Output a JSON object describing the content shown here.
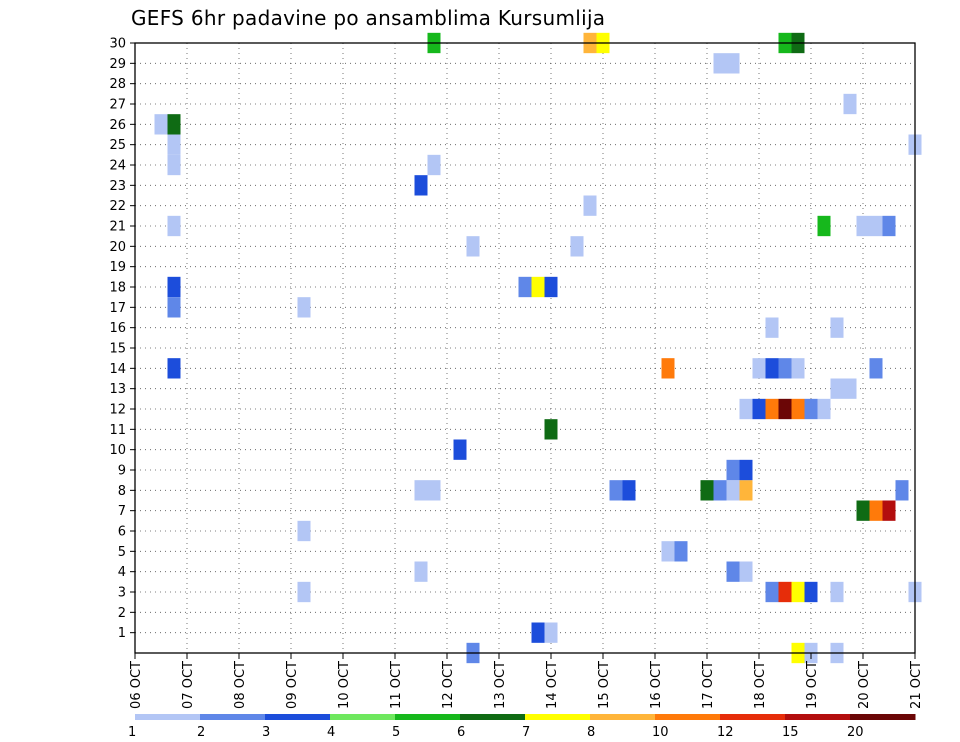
{
  "chart_data": {
    "type": "heatmap",
    "title": "GEFS 6hr padavine po ansamblima Kursumlija",
    "x_labels": [
      "06 OCT",
      "07 OCT",
      "08 OCT",
      "09 OCT",
      "10 OCT",
      "11 OCT",
      "12 OCT",
      "13 OCT",
      "14 OCT",
      "15 OCT",
      "16 OCT",
      "17 OCT",
      "18 OCT",
      "19 OCT",
      "20 OCT",
      "21 OCT"
    ],
    "y_labels": [
      "1",
      "2",
      "3",
      "4",
      "5",
      "6",
      "7",
      "8",
      "9",
      "10",
      "11",
      "12",
      "13",
      "14",
      "15",
      "16",
      "17",
      "18",
      "19",
      "20",
      "21",
      "22",
      "23",
      "24",
      "25",
      "26",
      "27",
      "28",
      "29",
      "30"
    ],
    "xlim": [
      0,
      60
    ],
    "ylim": [
      0,
      30
    ],
    "grid": true,
    "legend": {
      "levels": [
        "1",
        "2",
        "3",
        "4",
        "5",
        "6",
        "7",
        "8",
        "10",
        "12",
        "15",
        "20"
      ],
      "colors": [
        "#b3c6f5",
        "#5f87e8",
        "#1c4ddb",
        "#6ee85e",
        "#16b81c",
        "#0f6b14",
        "#ffff00",
        "#ffb53a",
        "#ff7a0a",
        "#e62d0a",
        "#b30e0e",
        "#6b0606"
      ],
      "placement": "bottom"
    },
    "cells": [
      {
        "t": 2,
        "m": 26,
        "v": 1
      },
      {
        "t": 3,
        "m": 26,
        "v": 6
      },
      {
        "t": 3,
        "m": 25,
        "v": 1
      },
      {
        "t": 3,
        "m": 24,
        "v": 1
      },
      {
        "t": 3,
        "m": 21,
        "v": 1
      },
      {
        "t": 3,
        "m": 18,
        "v": 3
      },
      {
        "t": 3,
        "m": 17,
        "v": 2
      },
      {
        "t": 3,
        "m": 14,
        "v": 3
      },
      {
        "t": 13,
        "m": 17,
        "v": 1
      },
      {
        "t": 13,
        "m": 6,
        "v": 1
      },
      {
        "t": 13,
        "m": 3,
        "v": 1
      },
      {
        "t": 22,
        "m": 23,
        "v": 3
      },
      {
        "t": 22,
        "m": 4,
        "v": 1
      },
      {
        "t": 23,
        "m": 30,
        "v": 5
      },
      {
        "t": 23,
        "m": 24,
        "v": 1
      },
      {
        "t": 22,
        "m": 8,
        "v": 1
      },
      {
        "t": 23,
        "m": 8,
        "v": 1
      },
      {
        "t": 25,
        "m": 10,
        "v": 3
      },
      {
        "t": 26,
        "m": 20,
        "v": 1
      },
      {
        "t": 26,
        "m": 0,
        "v": 2
      },
      {
        "t": 30,
        "m": 18,
        "v": 2
      },
      {
        "t": 31,
        "m": 18,
        "v": 7
      },
      {
        "t": 32,
        "m": 18,
        "v": 3
      },
      {
        "t": 31,
        "m": 1,
        "v": 3
      },
      {
        "t": 32,
        "m": 1,
        "v": 1
      },
      {
        "t": 32,
        "m": 11,
        "v": 6
      },
      {
        "t": 34,
        "m": 20,
        "v": 1
      },
      {
        "t": 35,
        "m": 22,
        "v": 1
      },
      {
        "t": 35,
        "m": 30,
        "v": 8
      },
      {
        "t": 36,
        "m": 30,
        "v": 7
      },
      {
        "t": 37,
        "m": 8,
        "v": 2
      },
      {
        "t": 38,
        "m": 8,
        "v": 3
      },
      {
        "t": 41,
        "m": 14,
        "v": 10
      },
      {
        "t": 41,
        "m": 5,
        "v": 1
      },
      {
        "t": 42,
        "m": 5,
        "v": 2
      },
      {
        "t": 44,
        "m": 8,
        "v": 6
      },
      {
        "t": 45,
        "m": 8,
        "v": 2
      },
      {
        "t": 46,
        "m": 8,
        "v": 1
      },
      {
        "t": 47,
        "m": 8,
        "v": 8
      },
      {
        "t": 45,
        "m": 29,
        "v": 1
      },
      {
        "t": 46,
        "m": 29,
        "v": 1
      },
      {
        "t": 46,
        "m": 9,
        "v": 2
      },
      {
        "t": 47,
        "m": 9,
        "v": 3
      },
      {
        "t": 46,
        "m": 4,
        "v": 2
      },
      {
        "t": 47,
        "m": 4,
        "v": 1
      },
      {
        "t": 47,
        "m": 12,
        "v": 1
      },
      {
        "t": 48,
        "m": 12,
        "v": 3
      },
      {
        "t": 49,
        "m": 12,
        "v": 10
      },
      {
        "t": 50,
        "m": 12,
        "v": 20
      },
      {
        "t": 51,
        "m": 12,
        "v": 10
      },
      {
        "t": 52,
        "m": 12,
        "v": 2
      },
      {
        "t": 53,
        "m": 12,
        "v": 1
      },
      {
        "t": 48,
        "m": 14,
        "v": 1
      },
      {
        "t": 49,
        "m": 14,
        "v": 3
      },
      {
        "t": 50,
        "m": 14,
        "v": 2
      },
      {
        "t": 51,
        "m": 14,
        "v": 1
      },
      {
        "t": 49,
        "m": 16,
        "v": 1
      },
      {
        "t": 49,
        "m": 3,
        "v": 2
      },
      {
        "t": 50,
        "m": 3,
        "v": 12
      },
      {
        "t": 51,
        "m": 3,
        "v": 7
      },
      {
        "t": 52,
        "m": 3,
        "v": 3
      },
      {
        "t": 51,
        "m": 0,
        "v": 7
      },
      {
        "t": 52,
        "m": 0,
        "v": 1
      },
      {
        "t": 50,
        "m": 30,
        "v": 5
      },
      {
        "t": 51,
        "m": 30,
        "v": 6
      },
      {
        "t": 53,
        "m": 21,
        "v": 5
      },
      {
        "t": 54,
        "m": 16,
        "v": 1
      },
      {
        "t": 54,
        "m": 13,
        "v": 1
      },
      {
        "t": 55,
        "m": 13,
        "v": 1
      },
      {
        "t": 54,
        "m": 3,
        "v": 1
      },
      {
        "t": 54,
        "m": 0,
        "v": 1
      },
      {
        "t": 55,
        "m": 27,
        "v": 1
      },
      {
        "t": 56,
        "m": 7,
        "v": 6
      },
      {
        "t": 57,
        "m": 7,
        "v": 10
      },
      {
        "t": 58,
        "m": 7,
        "v": 15
      },
      {
        "t": 56,
        "m": 21,
        "v": 1
      },
      {
        "t": 57,
        "m": 21,
        "v": 1
      },
      {
        "t": 58,
        "m": 21,
        "v": 2
      },
      {
        "t": 57,
        "m": 14,
        "v": 2
      },
      {
        "t": 59,
        "m": 8,
        "v": 2
      },
      {
        "t": 60,
        "m": 25,
        "v": 1
      },
      {
        "t": 60,
        "m": 3,
        "v": 1
      }
    ]
  }
}
